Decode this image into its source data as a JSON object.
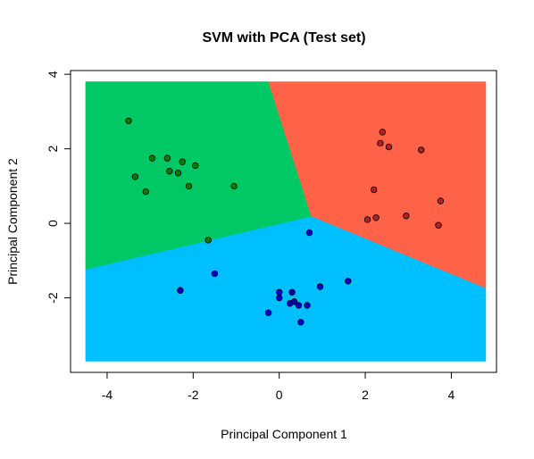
{
  "chart_data": {
    "type": "scatter",
    "title": "SVM with PCA (Test set)",
    "xlabel": "Principal Component 1",
    "ylabel": "Principal Component 2",
    "xlim": [
      -4.85,
      5.05
    ],
    "ylim": [
      -4.0,
      4.1
    ],
    "grid": false,
    "legend": "none",
    "x_ticks": [
      -4,
      -2,
      0,
      2,
      4
    ],
    "y_ticks": [
      -2,
      0,
      2,
      4
    ],
    "x_tick_labels": [
      "-4",
      "-2",
      "0",
      "2",
      "4"
    ],
    "y_tick_labels": [
      "-2",
      "0",
      "2",
      "4"
    ],
    "grid_extent": {
      "x": [
        -4.5,
        4.8
      ],
      "y": [
        -3.7,
        3.8
      ]
    },
    "regions": [
      {
        "color": "#00C864",
        "polygon": [
          [
            -4.5,
            3.8
          ],
          [
            -0.25,
            3.8
          ],
          [
            0.75,
            0.18
          ],
          [
            -4.5,
            -1.25
          ]
        ]
      },
      {
        "color": "#FF6347",
        "polygon": [
          [
            -0.25,
            3.8
          ],
          [
            4.8,
            3.8
          ],
          [
            4.8,
            -1.75
          ],
          [
            0.75,
            0.18
          ]
        ]
      },
      {
        "color": "#00BFFF",
        "polygon": [
          [
            -4.5,
            -1.25
          ],
          [
            0.75,
            0.18
          ],
          [
            4.8,
            -1.75
          ],
          [
            4.8,
            -3.7
          ],
          [
            -4.5,
            -3.7
          ]
        ]
      }
    ],
    "series": [
      {
        "color": "#008000",
        "points": [
          [
            -3.5,
            2.75
          ],
          [
            -3.35,
            1.25
          ],
          [
            -3.1,
            0.85
          ],
          [
            -2.95,
            1.75
          ],
          [
            -2.6,
            1.75
          ],
          [
            -2.55,
            1.4
          ],
          [
            -2.35,
            1.35
          ],
          [
            -2.25,
            1.65
          ],
          [
            -2.1,
            1.0
          ],
          [
            -1.95,
            1.55
          ],
          [
            -1.05,
            1.0
          ],
          [
            -1.65,
            -0.45
          ]
        ]
      },
      {
        "color": "#B22222",
        "points": [
          [
            2.4,
            2.45
          ],
          [
            2.35,
            2.15
          ],
          [
            2.55,
            2.05
          ],
          [
            3.3,
            1.97
          ],
          [
            2.2,
            0.9
          ],
          [
            2.05,
            0.1
          ],
          [
            2.25,
            0.15
          ],
          [
            2.95,
            0.2
          ],
          [
            3.75,
            0.6
          ],
          [
            3.7,
            -0.05
          ]
        ]
      },
      {
        "color": "#0000CD",
        "points": [
          [
            0.7,
            -0.25
          ],
          [
            -1.5,
            -1.35
          ],
          [
            -2.3,
            -1.8
          ],
          [
            -0.25,
            -2.4
          ],
          [
            0.0,
            -1.85
          ],
          [
            0.0,
            -2.0
          ],
          [
            0.3,
            -1.85
          ],
          [
            0.25,
            -2.15
          ],
          [
            0.35,
            -2.1
          ],
          [
            0.45,
            -2.2
          ],
          [
            0.65,
            -2.2
          ],
          [
            0.5,
            -2.65
          ],
          [
            0.95,
            -1.7
          ],
          [
            1.6,
            -1.55
          ]
        ]
      }
    ]
  }
}
